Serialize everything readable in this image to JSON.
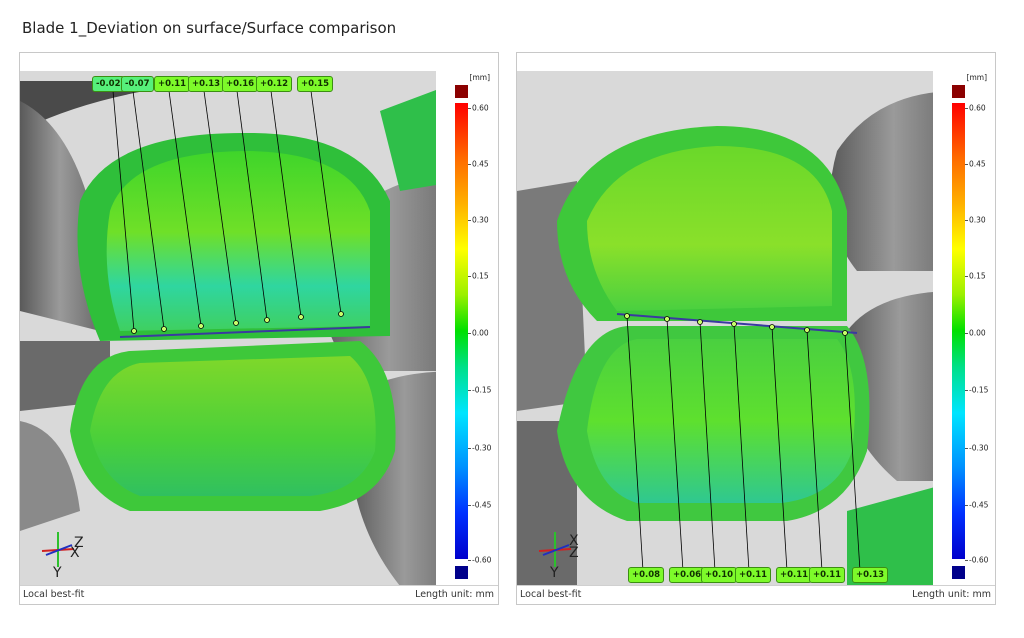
{
  "title": "Blade 1_Deviation on surface/Surface comparison",
  "colors": {
    "scale_top": "#8b0000",
    "scale_bottom": "#00008b",
    "label_bg": "#7dfa2a"
  },
  "left_panel": {
    "footer_left": "Local best-fit",
    "footer_right": "Length unit: mm",
    "scale_unit": "[mm]",
    "scale_ticks": [
      "0.60",
      "0.45",
      "0.30",
      "0.15",
      "0.00",
      "-0.15",
      "-0.30",
      "-0.45",
      "-0.60"
    ],
    "labels": [
      "-0.02",
      "-0.07",
      "+0.11",
      "+0.13",
      "+0.16",
      "+0.12",
      "+0.15"
    ],
    "axes": {
      "x": "X",
      "y": "Y",
      "z": "Z"
    }
  },
  "right_panel": {
    "footer_left": "Local best-fit",
    "footer_right": "Length unit: mm",
    "scale_unit": "[mm]",
    "scale_ticks": [
      "0.60",
      "0.45",
      "0.30",
      "0.15",
      "0.00",
      "-0.15",
      "-0.30",
      "-0.45",
      "-0.60"
    ],
    "labels": [
      "+0.08",
      "+0.06",
      "+0.10",
      "+0.11",
      "+0.11",
      "+0.11",
      "+0.13"
    ],
    "axes": {
      "x": "X",
      "y": "Y",
      "z": "Z"
    }
  }
}
